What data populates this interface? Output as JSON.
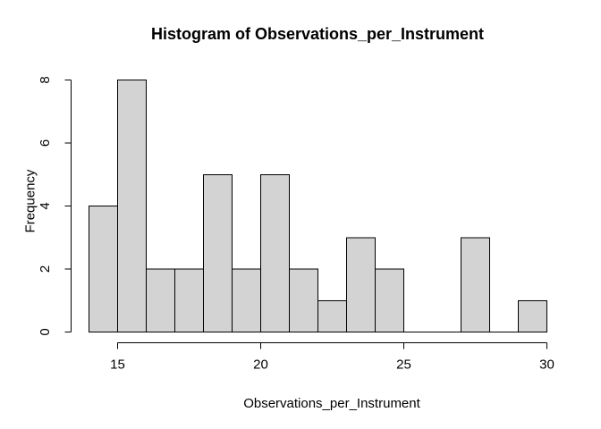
{
  "figure": {
    "background": "#ffffff"
  },
  "chart_data": {
    "type": "bar",
    "subtype": "histogram",
    "title": "Histogram of Observations_per_Instrument",
    "xlabel": "Observations_per_Instrument",
    "ylabel": "Frequency",
    "bin_edges": [
      14,
      15,
      16,
      17,
      18,
      19,
      20,
      21,
      22,
      23,
      24,
      25,
      26,
      27,
      28,
      29,
      30
    ],
    "frequencies": [
      4,
      8,
      2,
      2,
      5,
      2,
      5,
      2,
      1,
      3,
      2,
      0,
      0,
      3,
      0,
      1
    ],
    "x_ticks": [
      15,
      20,
      25,
      30
    ],
    "y_ticks": [
      0,
      2,
      4,
      6,
      8
    ],
    "xlim": [
      14,
      30
    ],
    "ylim": [
      0,
      8
    ],
    "grid": "off",
    "legend": "none",
    "bar_fill": "#d3d3d3",
    "bar_stroke": "#000000",
    "axis_color": "#000000",
    "text_color": "#000000"
  }
}
